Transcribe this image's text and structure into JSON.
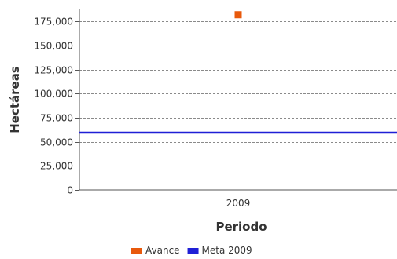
{
  "chart_data": {
    "type": "scatter",
    "xlabel": "Periodo",
    "ylabel": "Hectáreas",
    "categories": [
      "2009"
    ],
    "ylim": [
      0,
      187500
    ],
    "yticks": [
      0,
      25000,
      50000,
      75000,
      100000,
      125000,
      150000,
      175000
    ],
    "ytick_labels": [
      "0",
      "25,000",
      "50,000",
      "75,000",
      "100,000",
      "125,000",
      "150,000",
      "175,000"
    ],
    "grid": true,
    "legend_position": "bottom",
    "series": [
      {
        "name": "Avance",
        "kind": "point",
        "category": "2009",
        "value": 182000,
        "color": "#e8590c"
      },
      {
        "name": "Meta 2009",
        "kind": "horizontal-line",
        "value": 59500,
        "color": "#1f1fd6"
      }
    ]
  }
}
